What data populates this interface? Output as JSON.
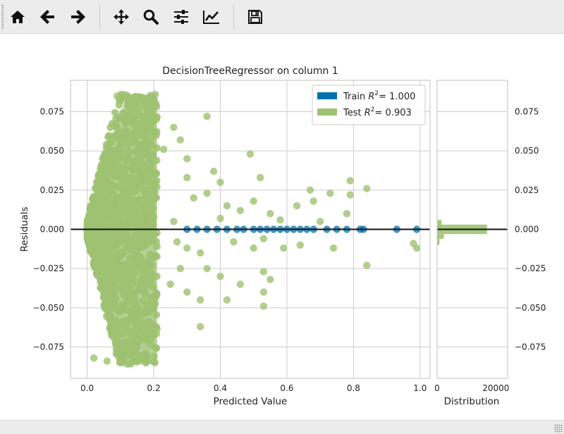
{
  "toolbar": {
    "buttons": [
      {
        "name": "home-button",
        "icon": "home-icon"
      },
      {
        "name": "back-button",
        "icon": "arrow-left-icon"
      },
      {
        "name": "forward-button",
        "icon": "arrow-right-icon"
      },
      {
        "name": "pan-button",
        "icon": "move-icon"
      },
      {
        "name": "zoom-button",
        "icon": "search-icon"
      },
      {
        "name": "configure-subplots-button",
        "icon": "sliders-icon"
      },
      {
        "name": "edit-axis-button",
        "icon": "line-chart-icon"
      },
      {
        "name": "save-button",
        "icon": "floppy-disk-icon"
      }
    ]
  },
  "chart_data": [
    {
      "type": "scatter",
      "title": "DecisionTreeRegressor on column 1",
      "xlabel": "Predicted Value",
      "ylabel": "Residuals",
      "xlim": [
        -0.05,
        1.03
      ],
      "ylim": [
        -0.095,
        0.095
      ],
      "xticks": [
        "0.0",
        "0.2",
        "0.4",
        "0.6",
        "0.8",
        "1.0"
      ],
      "yticks": [
        "0.075",
        "0.050",
        "0.025",
        "0.000",
        "−0.025",
        "−0.050",
        "−0.075"
      ],
      "grid": true,
      "legend_position": "top-right",
      "series": [
        {
          "name": "Train R² = 1.000",
          "legend_label": "Train",
          "legend_value": "= 1.000",
          "color": "#0072B2",
          "points": [
            [
              0.3,
              0.0
            ],
            [
              0.33,
              0.0
            ],
            [
              0.36,
              0.0
            ],
            [
              0.39,
              0.0
            ],
            [
              0.42,
              0.0
            ],
            [
              0.45,
              0.0
            ],
            [
              0.47,
              0.0
            ],
            [
              0.5,
              0.0
            ],
            [
              0.52,
              0.0
            ],
            [
              0.54,
              0.0
            ],
            [
              0.56,
              0.0
            ],
            [
              0.58,
              0.0
            ],
            [
              0.6,
              0.0
            ],
            [
              0.62,
              0.0
            ],
            [
              0.64,
              0.0
            ],
            [
              0.66,
              0.0
            ],
            [
              0.68,
              0.0
            ],
            [
              0.72,
              0.0
            ],
            [
              0.75,
              0.0
            ],
            [
              0.78,
              0.0
            ],
            [
              0.82,
              0.0
            ],
            [
              0.83,
              0.0
            ],
            [
              0.93,
              0.0
            ],
            [
              0.99,
              0.0
            ]
          ]
        },
        {
          "name": "Test R² = 0.903",
          "legend_label": "Test",
          "legend_value": "= 0.903",
          "color": "#9DC271",
          "points": [
            [
              0.09,
              0.085
            ],
            [
              0.1,
              0.082
            ],
            [
              0.11,
              0.086
            ],
            [
              0.12,
              0.08
            ],
            [
              0.13,
              0.084
            ],
            [
              0.17,
              0.083
            ],
            [
              0.19,
              0.07
            ],
            [
              0.2,
              0.062
            ],
            [
              0.26,
              0.065
            ],
            [
              0.36,
              0.072
            ],
            [
              0.23,
              0.051
            ],
            [
              0.28,
              0.057
            ],
            [
              0.3,
              0.045
            ],
            [
              0.38,
              0.037
            ],
            [
              0.49,
              0.048
            ],
            [
              0.3,
              0.033
            ],
            [
              0.4,
              0.03
            ],
            [
              0.52,
              0.033
            ],
            [
              0.67,
              0.025
            ],
            [
              0.79,
              0.031
            ],
            [
              0.84,
              0.026
            ],
            [
              0.73,
              0.023
            ],
            [
              0.32,
              0.02
            ],
            [
              0.36,
              0.023
            ],
            [
              0.42,
              0.015
            ],
            [
              0.46,
              0.012
            ],
            [
              0.5,
              0.018
            ],
            [
              0.55,
              0.01
            ],
            [
              0.63,
              0.015
            ],
            [
              0.68,
              0.018
            ],
            [
              0.79,
              0.022
            ],
            [
              0.78,
              0.01
            ],
            [
              0.26,
              0.005
            ],
            [
              0.4,
              0.007
            ],
            [
              0.58,
              0.006
            ],
            [
              0.7,
              0.005
            ],
            [
              0.27,
              -0.008
            ],
            [
              0.3,
              -0.012
            ],
            [
              0.34,
              -0.015
            ],
            [
              0.44,
              -0.008
            ],
            [
              0.5,
              -0.012
            ],
            [
              0.53,
              -0.006
            ],
            [
              0.59,
              -0.012
            ],
            [
              0.64,
              -0.01
            ],
            [
              0.74,
              -0.012
            ],
            [
              0.98,
              -0.009
            ],
            [
              0.99,
              -0.012
            ],
            [
              0.28,
              -0.025
            ],
            [
              0.36,
              -0.025
            ],
            [
              0.4,
              -0.03
            ],
            [
              0.46,
              -0.035
            ],
            [
              0.53,
              -0.027
            ],
            [
              0.55,
              -0.032
            ],
            [
              0.84,
              -0.023
            ],
            [
              0.25,
              -0.035
            ],
            [
              0.3,
              -0.04
            ],
            [
              0.34,
              -0.045
            ],
            [
              0.42,
              -0.045
            ],
            [
              0.53,
              -0.04
            ],
            [
              0.53,
              -0.049
            ],
            [
              0.34,
              -0.062
            ],
            [
              0.2,
              -0.05
            ],
            [
              0.19,
              -0.062
            ],
            [
              0.17,
              -0.07
            ],
            [
              0.14,
              -0.08
            ],
            [
              0.06,
              -0.084
            ],
            [
              0.1,
              -0.083
            ],
            [
              0.02,
              -0.082
            ]
          ]
        }
      ],
      "dense_cloud": {
        "description_series": "Test",
        "x_range": [
          0.0,
          0.21
        ],
        "y_range": [
          -0.085,
          0.086
        ]
      }
    },
    {
      "type": "bar",
      "orientation": "horizontal",
      "xlabel": "Distribution",
      "xticks": [
        "0",
        "20000"
      ],
      "xlim": [
        0,
        24000
      ],
      "yticks": [
        "0.075",
        "0.050",
        "0.025",
        "0.000",
        "−0.025",
        "−0.050",
        "−0.075"
      ],
      "series": [
        {
          "name": "Test",
          "color": "#9DC271",
          "bins": [
            [
              0.006,
              0.001,
              1500
            ],
            [
              0.003,
              0.0,
              17000
            ],
            [
              0.0,
              -0.003,
              17000
            ],
            [
              -0.003,
              -0.006,
              2300
            ],
            [
              -0.006,
              -0.01,
              800
            ]
          ]
        },
        {
          "name": "Train",
          "color": "#0072B2",
          "bins": [
            [
              0.0005,
              -0.0005,
              300
            ]
          ]
        }
      ]
    }
  ]
}
